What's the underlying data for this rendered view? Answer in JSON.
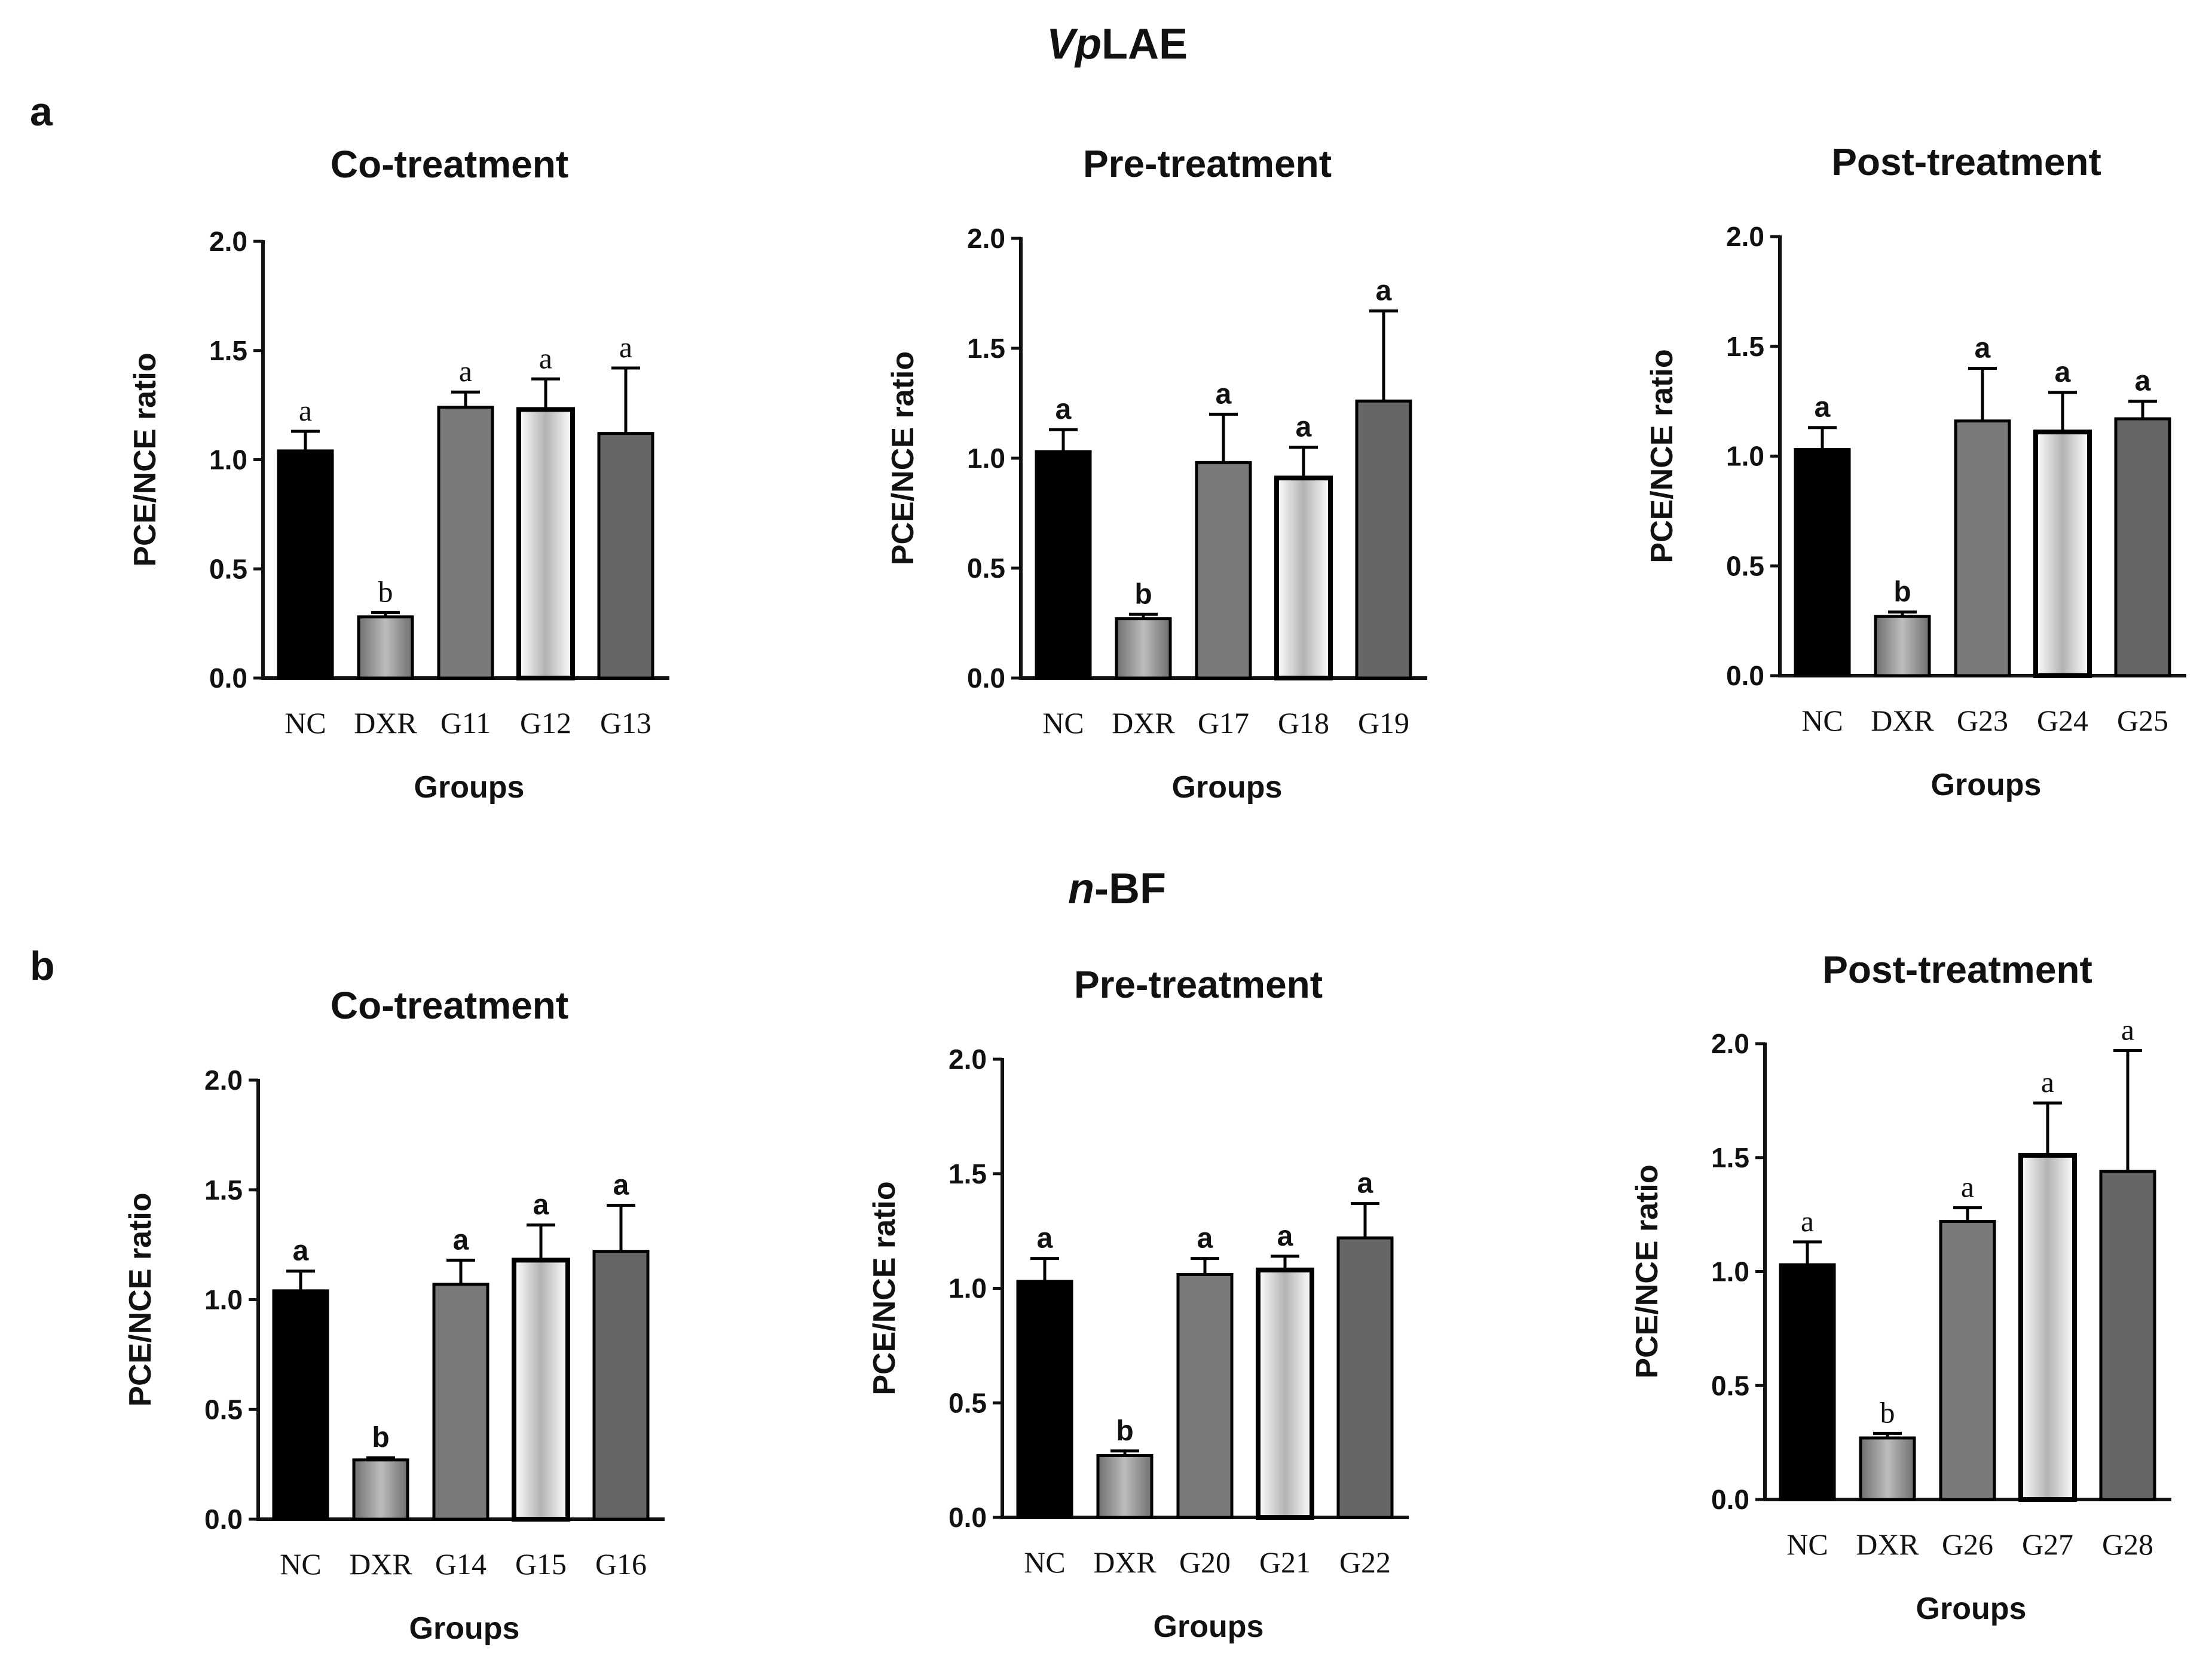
{
  "section_titles": [
    {
      "prefix": "Vp",
      "suffix": "LAE"
    },
    {
      "prefix": "n",
      "suffix": "-BF"
    }
  ],
  "panel_labels": [
    "a",
    "b"
  ],
  "colors": {
    "nc": "#000000",
    "dxr": "#8e8e8e",
    "grp1": "#7a7a7a",
    "grp2_fill": "#bdbdbd",
    "grp3": "#666666",
    "axis": "#111111"
  },
  "chart_data": [
    {
      "type": "bar",
      "title": "Co-treatment",
      "section": "VpLAE",
      "categories": [
        "NC",
        "DXR",
        "G11",
        "G12",
        "G13"
      ],
      "values": [
        1.04,
        0.28,
        1.24,
        1.23,
        1.12
      ],
      "errors": [
        0.09,
        0.02,
        0.07,
        0.14,
        0.3
      ],
      "significance": [
        "a",
        "b",
        "a",
        "a",
        "a"
      ],
      "xlabel": "Groups",
      "ylabel": "PCE/NCE ratio",
      "ylim": [
        0,
        2.0
      ],
      "yticks": [
        "0.0",
        "0.5",
        "1.0",
        "1.5",
        "2.0"
      ]
    },
    {
      "type": "bar",
      "title": "Pre-treatment",
      "section": "VpLAE",
      "categories": [
        "NC",
        "DXR",
        "G17",
        "G18",
        "G19"
      ],
      "values": [
        1.03,
        0.27,
        0.98,
        0.91,
        1.26
      ],
      "errors": [
        0.1,
        0.02,
        0.22,
        0.14,
        0.41
      ],
      "significance": [
        "a",
        "b",
        "a",
        "a",
        "a"
      ],
      "xlabel": "Groups",
      "ylabel": "PCE/NCE ratio",
      "ylim": [
        0,
        2.0
      ],
      "yticks": [
        "0.0",
        "0.5",
        "1.0",
        "1.5",
        "2.0"
      ]
    },
    {
      "type": "bar",
      "title": "Post-treatment",
      "section": "VpLAE",
      "categories": [
        "NC",
        "DXR",
        "G23",
        "G24",
        "G25"
      ],
      "values": [
        1.03,
        0.27,
        1.16,
        1.11,
        1.17
      ],
      "errors": [
        0.1,
        0.02,
        0.24,
        0.18,
        0.08
      ],
      "significance": [
        "a",
        "b",
        "a",
        "a",
        "a"
      ],
      "xlabel": "Groups",
      "ylabel": "PCE/NCE ratio",
      "ylim": [
        0,
        2.0
      ],
      "yticks": [
        "0.0",
        "0.5",
        "1.0",
        "1.5",
        "2.0"
      ]
    },
    {
      "type": "bar",
      "title": "Co-treatment",
      "section": "n-BF",
      "categories": [
        "NC",
        "DXR",
        "G14",
        "G15",
        "G16"
      ],
      "values": [
        1.04,
        0.27,
        1.07,
        1.18,
        1.22
      ],
      "errors": [
        0.09,
        0.01,
        0.11,
        0.16,
        0.21
      ],
      "significance": [
        "a",
        "b",
        "a",
        "a",
        "a"
      ],
      "xlabel": "Groups",
      "ylabel": "PCE/NCE ratio",
      "ylim": [
        0,
        2.0
      ],
      "yticks": [
        "0.0",
        "0.5",
        "1.0",
        "1.5",
        "2.0"
      ]
    },
    {
      "type": "bar",
      "title": "Pre-treatment",
      "section": "n-BF",
      "categories": [
        "NC",
        "DXR",
        "G20",
        "G21",
        "G22"
      ],
      "values": [
        1.03,
        0.27,
        1.06,
        1.08,
        1.22
      ],
      "errors": [
        0.1,
        0.02,
        0.07,
        0.06,
        0.15
      ],
      "significance": [
        "a",
        "b",
        "a",
        "a",
        "a"
      ],
      "xlabel": "Groups",
      "ylabel": "PCE/NCE ratio",
      "ylim": [
        0,
        2.0
      ],
      "yticks": [
        "0.0",
        "0.5",
        "1.0",
        "1.5",
        "2.0"
      ]
    },
    {
      "type": "bar",
      "title": "Post-treatment",
      "section": "n-BF",
      "categories": [
        "NC",
        "DXR",
        "G26",
        "G27",
        "G28"
      ],
      "values": [
        1.03,
        0.27,
        1.22,
        1.51,
        1.44
      ],
      "errors": [
        0.1,
        0.02,
        0.06,
        0.23,
        0.53
      ],
      "significance": [
        "a",
        "b",
        "a",
        "a",
        "a"
      ],
      "xlabel": "Groups",
      "ylabel": "PCE/NCE ratio",
      "ylim": [
        0,
        2.0
      ],
      "yticks": [
        "0.0",
        "0.5",
        "1.0",
        "1.5",
        "2.0"
      ]
    }
  ]
}
